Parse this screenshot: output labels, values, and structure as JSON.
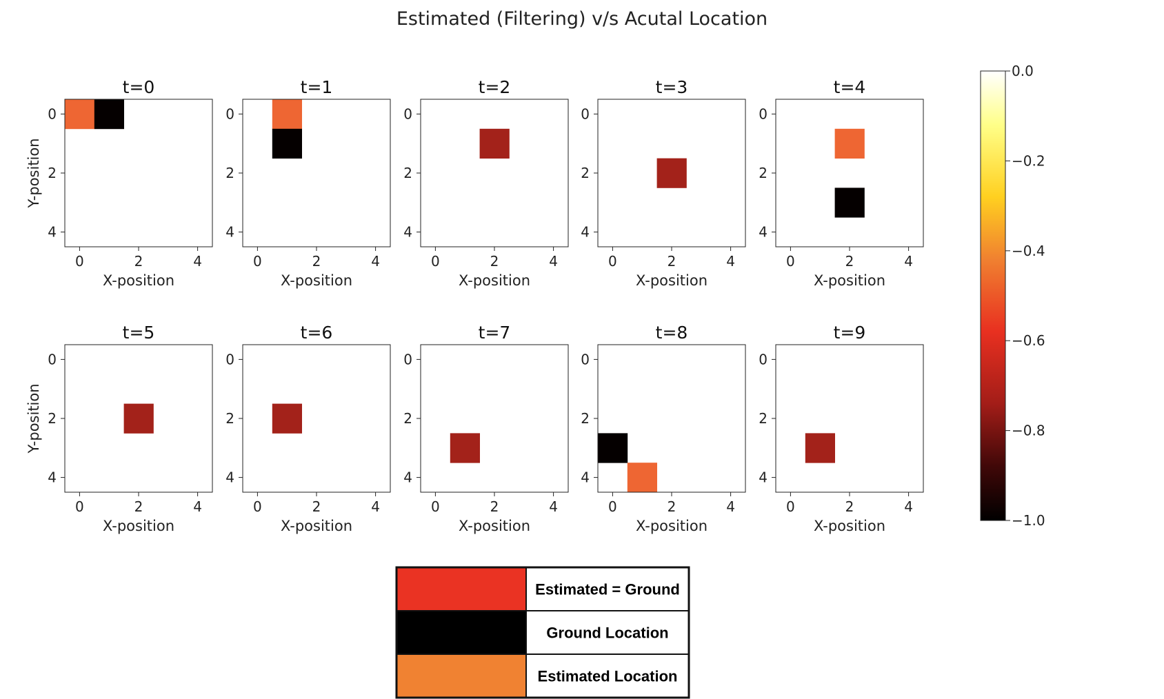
{
  "chart_data": {
    "type": "heatmap",
    "title": "Estimated (Filtering) v/s Acutal Location",
    "xlabel": "X-position",
    "ylabel": "Y-position",
    "grid_size": 5,
    "x_ticks": [
      "0",
      "2",
      "4"
    ],
    "y_ticks": [
      "0",
      "2",
      "4"
    ],
    "panels": [
      {
        "title": "t=0",
        "cells": [
          {
            "x": 0,
            "y": 0,
            "value": -0.6
          },
          {
            "x": 1,
            "y": 0,
            "value": -1.0
          }
        ]
      },
      {
        "title": "t=1",
        "cells": [
          {
            "x": 1,
            "y": 0,
            "value": -0.6
          },
          {
            "x": 1,
            "y": 1,
            "value": -1.0
          }
        ]
      },
      {
        "title": "t=2",
        "cells": [
          {
            "x": 2,
            "y": 1,
            "value": -0.8
          }
        ]
      },
      {
        "title": "t=3",
        "cells": [
          {
            "x": 2,
            "y": 2,
            "value": -0.8
          }
        ]
      },
      {
        "title": "t=4",
        "cells": [
          {
            "x": 2,
            "y": 1,
            "value": -0.6
          },
          {
            "x": 2,
            "y": 3,
            "value": -1.0
          }
        ]
      },
      {
        "title": "t=5",
        "cells": [
          {
            "x": 2,
            "y": 2,
            "value": -0.8
          }
        ]
      },
      {
        "title": "t=6",
        "cells": [
          {
            "x": 1,
            "y": 2,
            "value": -0.8
          }
        ]
      },
      {
        "title": "t=7",
        "cells": [
          {
            "x": 1,
            "y": 3,
            "value": -0.8
          }
        ]
      },
      {
        "title": "t=8",
        "cells": [
          {
            "x": 0,
            "y": 3,
            "value": -1.0
          },
          {
            "x": 1,
            "y": 4,
            "value": -0.6
          }
        ]
      },
      {
        "title": "t=9",
        "cells": [
          {
            "x": 1,
            "y": 3,
            "value": -0.8
          }
        ]
      }
    ],
    "colorbar": {
      "range": [
        -1.0,
        0.0
      ],
      "ticks": [
        0.0,
        -0.2,
        -0.4,
        -0.6,
        -0.8,
        -1.0
      ],
      "tick_labels": [
        "0.0",
        "−0.2",
        "−0.4",
        "−0.6",
        "−0.8",
        "−1.0"
      ],
      "colormap": "hot"
    },
    "cell_colors": {
      "-0.6": "#ee6633",
      "-0.8": "#a3221a",
      "-1.0": "#050000"
    },
    "legend": [
      {
        "label": "Estimated = Ground",
        "color": "#ea3323"
      },
      {
        "label": "Ground Location",
        "color": "#000000"
      },
      {
        "label": "Estimated Location",
        "color": "#f08232"
      }
    ]
  }
}
